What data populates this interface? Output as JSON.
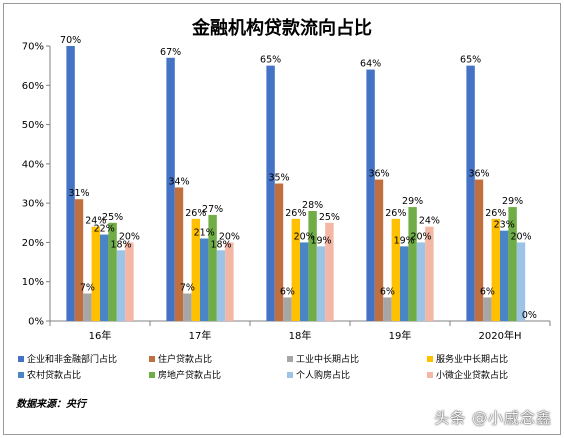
{
  "chart_data": {
    "type": "bar",
    "title": "金融机构贷款流向占比",
    "categories": [
      "16年",
      "17年",
      "18年",
      "19年",
      "2020年H"
    ],
    "yticks": [
      "0%",
      "10%",
      "20%",
      "30%",
      "40%",
      "50%",
      "60%",
      "70%"
    ],
    "ylim": [
      0,
      70
    ],
    "grid": false,
    "legend_position": "bottom",
    "series": [
      {
        "name": "企业和非金融部门占比",
        "color": "#4472C4",
        "values": [
          70,
          67,
          65,
          64,
          65
        ],
        "labels": [
          "70%",
          "67%",
          "65%",
          "64%",
          "65%"
        ]
      },
      {
        "name": "住户贷款占比",
        "color": "#C0703E",
        "values": [
          31,
          34,
          35,
          36,
          36
        ],
        "labels": [
          "31%",
          "34%",
          "35%",
          "36%",
          "36%"
        ]
      },
      {
        "name": "工业中长期占比",
        "color": "#A6A6A6",
        "values": [
          7,
          7,
          6,
          6,
          6
        ],
        "labels": [
          "7%",
          "7%",
          "6%",
          "6%",
          "6%"
        ]
      },
      {
        "name": "服务业中长期占比",
        "color": "#FFC000",
        "values": [
          24,
          26,
          26,
          26,
          26
        ],
        "labels": [
          "24%",
          "26%",
          "26%",
          "26%",
          "26%"
        ]
      },
      {
        "name": "农村贷款占比",
        "color": "#4A86C5",
        "values": [
          22,
          21,
          20,
          19,
          23
        ],
        "labels": [
          "22%",
          "21%",
          "20%",
          "19%",
          "23%"
        ]
      },
      {
        "name": "房地产贷款占比",
        "color": "#70AD47",
        "values": [
          25,
          27,
          28,
          29,
          29
        ],
        "labels": [
          "25%",
          "27%",
          "28%",
          "29%",
          "29%"
        ]
      },
      {
        "name": "个人购房占比",
        "color": "#9DC3E6",
        "values": [
          18,
          18,
          19,
          20,
          20
        ],
        "labels": [
          "18%",
          "18%",
          "19%",
          "20%",
          "20%"
        ]
      },
      {
        "name": "小微企业贷款占比",
        "color": "#F4B7A5",
        "values": [
          20,
          20,
          25,
          24,
          0
        ],
        "labels": [
          "20%",
          "20%",
          "25%",
          "24%",
          "0%"
        ]
      }
    ]
  },
  "source_text": "数据来源：央行",
  "watermark": "头条 @小戚念鑫"
}
